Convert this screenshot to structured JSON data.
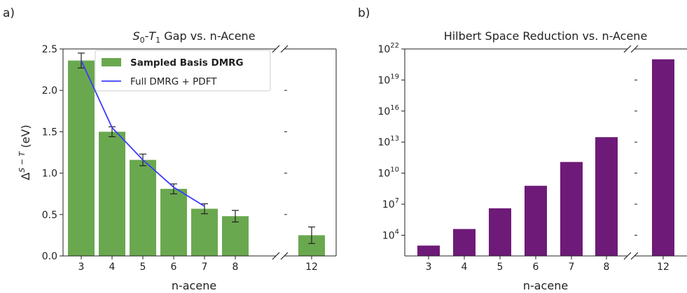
{
  "panels": [
    {
      "label": "a)",
      "chart_data": {
        "type": "bar",
        "title_math_1": "S",
        "title_sub_1": "0",
        "title_dash": "-",
        "title_math_2": "T",
        "title_sub_2": "1",
        "title_rest": " Gap vs. n-Acene",
        "xlabel": "n-acene",
        "ylabel_prefix": "Δ",
        "ylabel_sup": "S − T",
        "ylabel_suffix": " (eV)",
        "ylim": [
          0,
          2.5
        ],
        "yticks": [
          "0.0",
          "0.5",
          "1.0",
          "1.5",
          "2.0",
          "2.5"
        ],
        "ytick_values": [
          0,
          0.5,
          1.0,
          1.5,
          2.0,
          2.5
        ],
        "categories": [
          "3",
          "4",
          "5",
          "6",
          "7",
          "8",
          "12"
        ],
        "broken_x_axis_after": "8",
        "series": [
          {
            "name": "Sampled Basis DMRG",
            "kind": "bar",
            "color": "#6aa84f",
            "values": [
              2.36,
              1.5,
              1.16,
              0.81,
              0.57,
              0.48,
              0.25
            ],
            "errors": [
              0.09,
              0.06,
              0.07,
              0.06,
              0.06,
              0.07,
              0.1
            ]
          },
          {
            "name": "Full DMRG + PDFT",
            "kind": "line",
            "color": "#3b3bff",
            "x": [
              "3",
              "4",
              "5",
              "6",
              "7"
            ],
            "values": [
              2.36,
              1.55,
              1.16,
              0.83,
              0.6
            ]
          }
        ],
        "legend_position": "upper-right"
      }
    },
    {
      "label": "b)",
      "chart_data": {
        "type": "bar",
        "title": "Hilbert Space Reduction vs. n-Acene",
        "xlabel": "n-acene",
        "ylabel": "",
        "yscale": "log",
        "ylim": [
          100,
          1e+22
        ],
        "ytick_base": "10",
        "ytick_exponents": [
          "4",
          "7",
          "10",
          "13",
          "16",
          "19",
          "22"
        ],
        "categories": [
          "3",
          "4",
          "5",
          "6",
          "7",
          "8",
          "12"
        ],
        "broken_x_axis_after": "8",
        "series": [
          {
            "kind": "bar",
            "color": "#6e1a78",
            "values": [
              1000,
              40000,
              4000000.0,
              600000000.0,
              120000000000.0,
              30000000000000.0,
              1e+21
            ]
          }
        ]
      }
    }
  ]
}
